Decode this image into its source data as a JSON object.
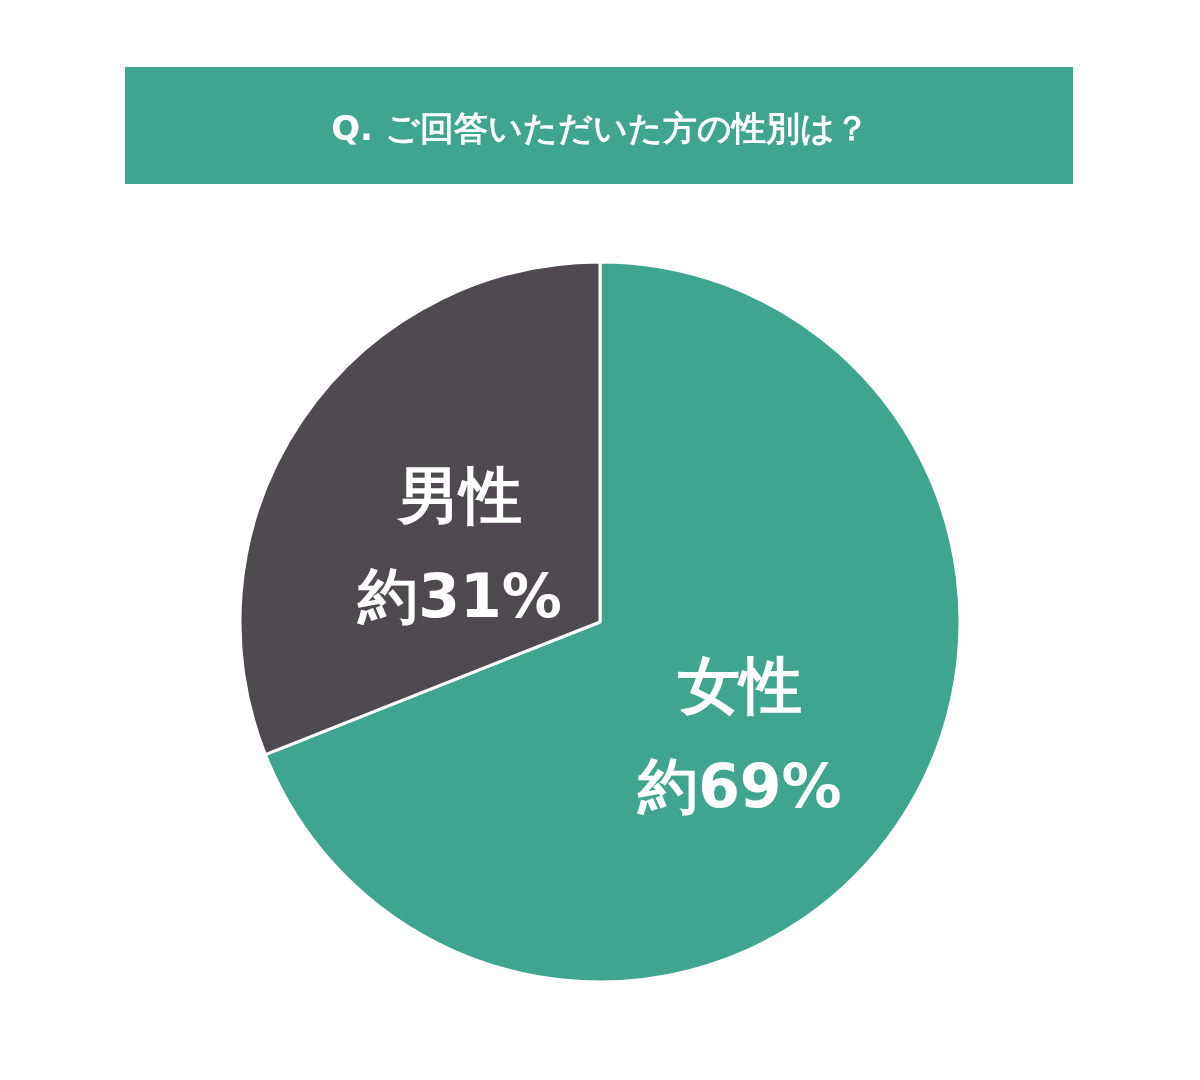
{
  "chart_data": {
    "type": "pie",
    "title": "Q. ご回答いただいた方の性別は？",
    "categories": [
      "女性",
      "男性"
    ],
    "values": [
      69,
      31
    ],
    "colors": [
      "#3fa58f",
      "#4f4a4f"
    ],
    "value_labels": [
      "約69%",
      "約31%"
    ],
    "legend": false
  }
}
